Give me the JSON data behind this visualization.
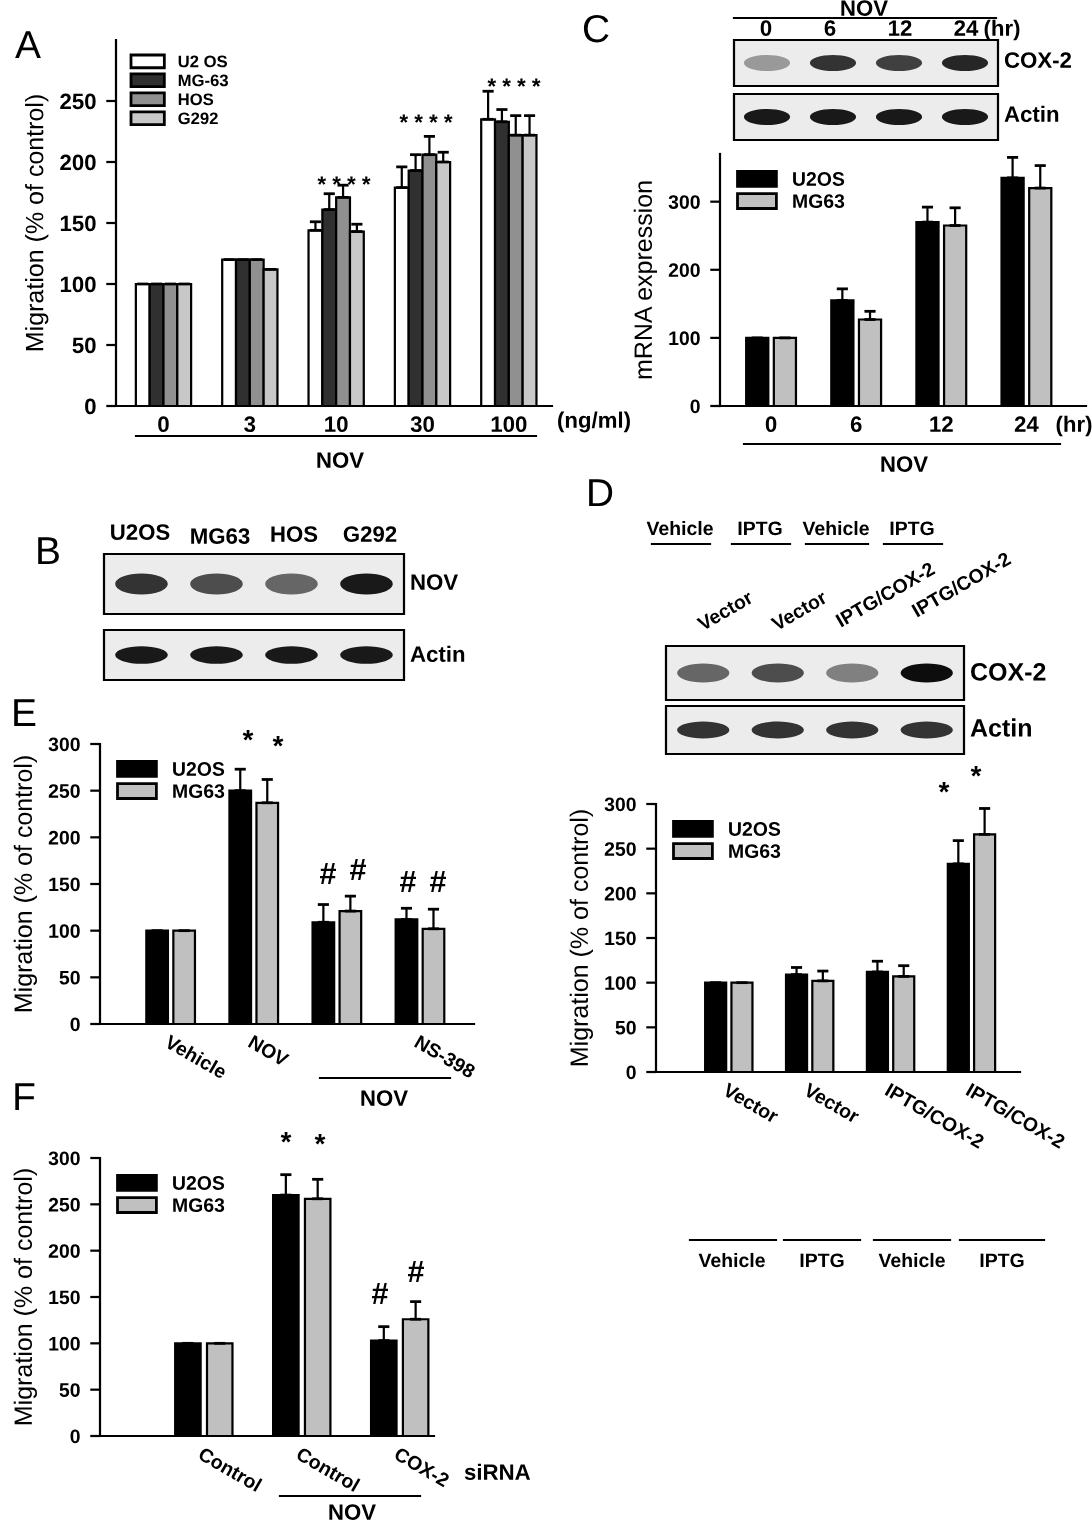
{
  "chart_data": [
    {
      "type": "bar",
      "title": "A",
      "ylabel": "Migration (% of control)",
      "categories": [
        "0",
        "3",
        "10",
        "30",
        "100"
      ],
      "ylim": [
        0,
        300
      ],
      "yticks": [
        0,
        50,
        100,
        150,
        200,
        250
      ],
      "legend": "top left",
      "series": [
        {
          "name": "U2 OS",
          "color": "#ffffff",
          "values": [
            100,
            120,
            144,
            179,
            235
          ],
          "errors": [
            null,
            null,
            7,
            17,
            23
          ]
        },
        {
          "name": "MG-63",
          "color": "#303030",
          "values": [
            100,
            120,
            161,
            193,
            233
          ],
          "errors": [
            null,
            null,
            13,
            13,
            10
          ]
        },
        {
          "name": "HOS",
          "color": "#909090",
          "values": [
            100,
            120,
            171,
            206,
            222
          ],
          "errors": [
            null,
            null,
            10,
            15,
            16
          ]
        },
        {
          "name": "G292",
          "color": "#c8c8c8",
          "values": [
            100,
            112,
            143,
            200,
            222
          ],
          "errors": [
            null,
            null,
            6,
            8,
            16
          ]
        }
      ],
      "annotations": [
        "* * * *",
        "* * * *",
        "* * * *",
        "(ng/ml)",
        "NOV"
      ]
    },
    {
      "type": "bar",
      "title": "C",
      "ylabel": "mRNA expression",
      "categories": [
        "0",
        "6",
        "12",
        "24"
      ],
      "ylim": [
        0,
        370
      ],
      "yticks": [
        0,
        100,
        200,
        300
      ],
      "legend": "top left",
      "series": [
        {
          "name": "U2OS",
          "color": "#000000",
          "values": [
            100,
            155,
            270,
            335
          ],
          "errors": [
            null,
            17,
            22,
            30
          ]
        },
        {
          "name": "MG63",
          "color": "#c0c0c0",
          "values": [
            100,
            127,
            265,
            320
          ],
          "errors": [
            null,
            12,
            26,
            33
          ]
        }
      ],
      "annotations": [
        "(hr)",
        "NOV",
        "NOV",
        "0",
        "6",
        "12",
        "24",
        "(hr)",
        "COX-2",
        "Actin"
      ]
    },
    {
      "type": "other",
      "title": "B",
      "annotations": [
        "U2OS",
        "MG63",
        "HOS",
        "G292",
        "NOV",
        "Actin"
      ]
    },
    {
      "type": "bar",
      "title": "D",
      "ylabel": "Migration (% of control)",
      "categories": [
        "Vector",
        "Vector",
        "IPTG/COX-2",
        "IPTG/COX-2"
      ],
      "ylim": [
        0,
        300
      ],
      "yticks": [
        0,
        50,
        100,
        150,
        200,
        250,
        300
      ],
      "legend": "top left",
      "series": [
        {
          "name": "U2OS",
          "color": "#000000",
          "values": [
            100,
            109,
            112,
            233
          ],
          "errors": [
            null,
            8,
            12,
            26
          ]
        },
        {
          "name": "MG63",
          "color": "#c0c0c0",
          "values": [
            100,
            102,
            107,
            266
          ],
          "errors": [
            null,
            11,
            12,
            29
          ]
        }
      ],
      "annotations": [
        "Vehicle",
        "IPTG",
        "Vehicle",
        "IPTG",
        "Vector",
        "Vector",
        "IPTG/COX-2",
        "IPTG/COX-2",
        "COX-2",
        "Actin",
        "*",
        "*",
        "Vehicle",
        "IPTG",
        "Vehicle",
        "IPTG"
      ]
    },
    {
      "type": "bar",
      "title": "E",
      "ylabel": "Migration (% of control)",
      "categories": [
        "Vehicle",
        "NOV",
        null,
        "NS-398"
      ],
      "ylim": [
        0,
        300
      ],
      "yticks": [
        0,
        50,
        100,
        150,
        200,
        250,
        300
      ],
      "legend": "top left",
      "series": [
        {
          "name": "U2OS",
          "color": "#000000",
          "values": [
            100,
            250,
            109,
            112
          ],
          "errors": [
            null,
            23,
            19,
            12
          ]
        },
        {
          "name": "MG63",
          "color": "#c0c0c0",
          "values": [
            100,
            237,
            121,
            102
          ],
          "errors": [
            null,
            25,
            16,
            21
          ]
        }
      ],
      "annotations": [
        "*",
        "*",
        "#",
        "#",
        "#",
        "#",
        "NOV"
      ]
    },
    {
      "type": "bar",
      "title": "F",
      "ylabel": "Migration (% of control)",
      "categories": [
        "Control",
        "Control",
        "COX-2"
      ],
      "ylim": [
        0,
        300
      ],
      "yticks": [
        0,
        50,
        100,
        150,
        200,
        250,
        300
      ],
      "legend": "top left",
      "series": [
        {
          "name": "U2OS",
          "color": "#000000",
          "values": [
            100,
            260,
            103
          ],
          "errors": [
            null,
            22,
            15
          ]
        },
        {
          "name": "MG63",
          "color": "#c0c0c0",
          "values": [
            100,
            256,
            126
          ],
          "errors": [
            null,
            21,
            19
          ]
        }
      ],
      "annotations": [
        "*",
        "*",
        "#",
        "#",
        "siRNA",
        "NOV"
      ]
    }
  ]
}
